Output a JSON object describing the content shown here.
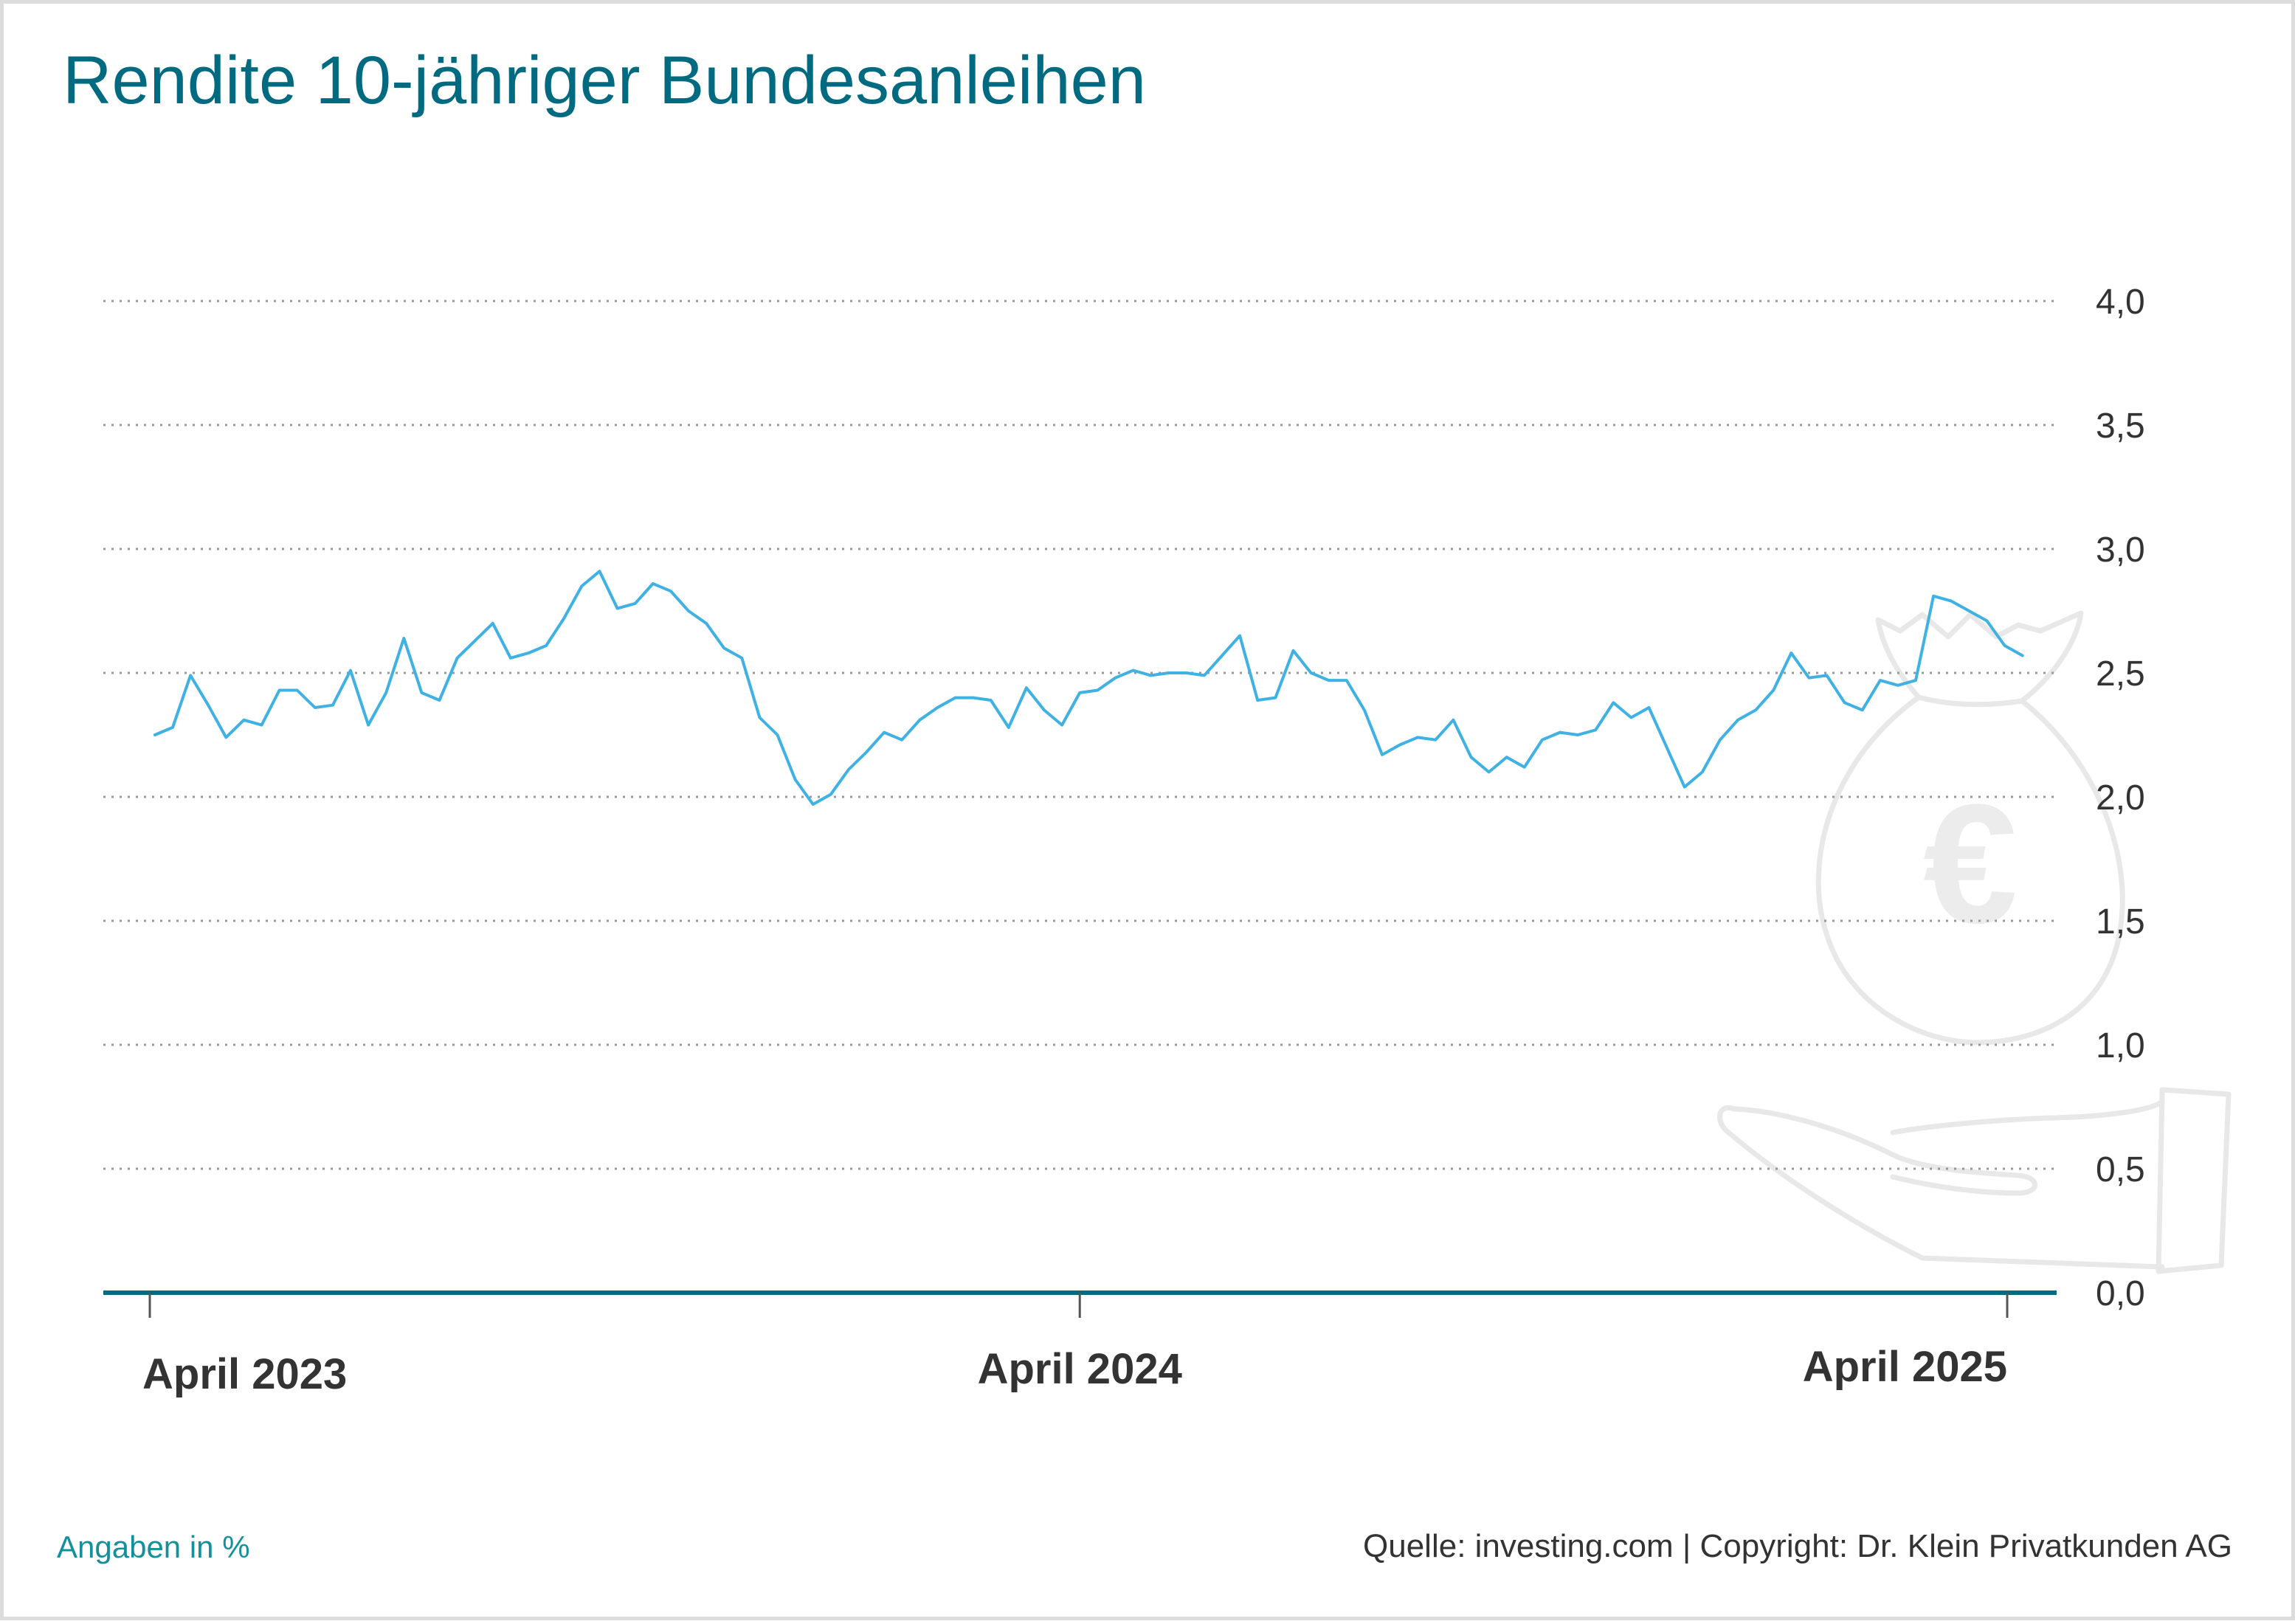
{
  "title": "Rendite 10-jähriger Bundesanleihen",
  "footnote": "Angaben in %",
  "source": "Quelle: investing.com | Copyright: Dr. Klein Privatkunden AG",
  "colors": {
    "title": "#006a80",
    "line": "#3fb1e3",
    "axis": "#006a80",
    "grid": "#999999",
    "footnote": "#14909c",
    "watermark": "#e8e8e8"
  },
  "watermark_icon": "euro-money-bag-in-hand-icon",
  "chart_data": {
    "type": "line",
    "title": "Rendite 10-jähriger Bundesanleihen",
    "xlabel": "",
    "ylabel": "",
    "ylim": [
      0,
      4
    ],
    "xlim": [
      "2023-03-31",
      "2025-05-12"
    ],
    "y_ticks": [
      {
        "value": 0,
        "label": "0,0"
      },
      {
        "value": 0.5,
        "label": "0,5"
      },
      {
        "value": 1,
        "label": "1,0"
      },
      {
        "value": 1.5,
        "label": "1,5"
      },
      {
        "value": 2,
        "label": "2,0"
      },
      {
        "value": 2.5,
        "label": "2,5"
      },
      {
        "value": 3,
        "label": "3,0"
      },
      {
        "value": 3.5,
        "label": "3,5"
      },
      {
        "value": 4,
        "label": "4,0"
      }
    ],
    "x_ticks": [
      {
        "value": "2023-04-01",
        "label": "April 2023"
      },
      {
        "value": "2024-04-01",
        "label": "April 2024"
      },
      {
        "value": "2025-04-01",
        "label": "April 2025"
      }
    ],
    "grid": "horizontal dotted",
    "legend": "none",
    "y_axis_position": "right",
    "series": [
      {
        "points": [
          [
            "2023-04-03",
            2.25
          ],
          [
            "2023-04-10",
            2.28
          ],
          [
            "2023-04-17",
            2.49
          ],
          [
            "2023-04-24",
            2.37
          ],
          [
            "2023-05-01",
            2.24
          ],
          [
            "2023-05-08",
            2.31
          ],
          [
            "2023-05-15",
            2.29
          ],
          [
            "2023-05-22",
            2.43
          ],
          [
            "2023-05-29",
            2.43
          ],
          [
            "2023-06-05",
            2.36
          ],
          [
            "2023-06-12",
            2.37
          ],
          [
            "2023-06-19",
            2.51
          ],
          [
            "2023-06-26",
            2.29
          ],
          [
            "2023-07-03",
            2.42
          ],
          [
            "2023-07-10",
            2.64
          ],
          [
            "2023-07-17",
            2.42
          ],
          [
            "2023-07-24",
            2.39
          ],
          [
            "2023-07-31",
            2.56
          ],
          [
            "2023-08-07",
            2.63
          ],
          [
            "2023-08-14",
            2.7
          ],
          [
            "2023-08-21",
            2.56
          ],
          [
            "2023-08-28",
            2.58
          ],
          [
            "2023-09-04",
            2.61
          ],
          [
            "2023-09-11",
            2.72
          ],
          [
            "2023-09-18",
            2.85
          ],
          [
            "2023-09-25",
            2.91
          ],
          [
            "2023-10-02",
            2.76
          ],
          [
            "2023-10-09",
            2.78
          ],
          [
            "2023-10-16",
            2.86
          ],
          [
            "2023-10-23",
            2.83
          ],
          [
            "2023-10-30",
            2.75
          ],
          [
            "2023-11-06",
            2.7
          ],
          [
            "2023-11-13",
            2.6
          ],
          [
            "2023-11-20",
            2.56
          ],
          [
            "2023-11-27",
            2.32
          ],
          [
            "2023-12-04",
            2.25
          ],
          [
            "2023-12-11",
            2.07
          ],
          [
            "2023-12-18",
            1.97
          ],
          [
            "2023-12-25",
            2.01
          ],
          [
            "2024-01-01",
            2.11
          ],
          [
            "2024-01-08",
            2.18
          ],
          [
            "2024-01-15",
            2.26
          ],
          [
            "2024-01-22",
            2.23
          ],
          [
            "2024-01-29",
            2.31
          ],
          [
            "2024-02-05",
            2.36
          ],
          [
            "2024-02-12",
            2.4
          ],
          [
            "2024-02-19",
            2.4
          ],
          [
            "2024-02-26",
            2.39
          ],
          [
            "2024-03-04",
            2.28
          ],
          [
            "2024-03-11",
            2.44
          ],
          [
            "2024-03-18",
            2.35
          ],
          [
            "2024-03-25",
            2.29
          ],
          [
            "2024-04-01",
            2.42
          ],
          [
            "2024-04-08",
            2.43
          ],
          [
            "2024-04-15",
            2.48
          ],
          [
            "2024-04-22",
            2.51
          ],
          [
            "2024-04-29",
            2.49
          ],
          [
            "2024-05-06",
            2.5
          ],
          [
            "2024-05-13",
            2.5
          ],
          [
            "2024-05-20",
            2.49
          ],
          [
            "2024-05-27",
            2.57
          ],
          [
            "2024-06-03",
            2.65
          ],
          [
            "2024-06-10",
            2.39
          ],
          [
            "2024-06-17",
            2.4
          ],
          [
            "2024-06-24",
            2.59
          ],
          [
            "2024-07-01",
            2.5
          ],
          [
            "2024-07-08",
            2.47
          ],
          [
            "2024-07-15",
            2.47
          ],
          [
            "2024-07-22",
            2.35
          ],
          [
            "2024-07-29",
            2.17
          ],
          [
            "2024-08-05",
            2.21
          ],
          [
            "2024-08-12",
            2.24
          ],
          [
            "2024-08-19",
            2.23
          ],
          [
            "2024-08-26",
            2.31
          ],
          [
            "2024-09-02",
            2.16
          ],
          [
            "2024-09-09",
            2.1
          ],
          [
            "2024-09-16",
            2.16
          ],
          [
            "2024-09-23",
            2.12
          ],
          [
            "2024-09-30",
            2.23
          ],
          [
            "2024-10-07",
            2.26
          ],
          [
            "2024-10-14",
            2.25
          ],
          [
            "2024-10-21",
            2.27
          ],
          [
            "2024-10-28",
            2.38
          ],
          [
            "2024-11-04",
            2.32
          ],
          [
            "2024-11-11",
            2.36
          ],
          [
            "2024-11-18",
            2.2
          ],
          [
            "2024-11-25",
            2.04
          ],
          [
            "2024-12-02",
            2.1
          ],
          [
            "2024-12-09",
            2.23
          ],
          [
            "2024-12-16",
            2.31
          ],
          [
            "2024-12-23",
            2.35
          ],
          [
            "2024-12-30",
            2.43
          ],
          [
            "2025-01-06",
            2.58
          ],
          [
            "2025-01-13",
            2.48
          ],
          [
            "2025-01-20",
            2.49
          ],
          [
            "2025-01-27",
            2.38
          ],
          [
            "2025-02-03",
            2.35
          ],
          [
            "2025-02-10",
            2.47
          ],
          [
            "2025-02-17",
            2.45
          ],
          [
            "2025-02-24",
            2.47
          ],
          [
            "2025-03-03",
            2.81
          ],
          [
            "2025-03-10",
            2.79
          ],
          [
            "2025-03-17",
            2.75
          ],
          [
            "2025-03-24",
            2.71
          ],
          [
            "2025-03-31",
            2.61
          ],
          [
            "2025-04-07",
            2.57
          ]
        ]
      }
    ]
  }
}
